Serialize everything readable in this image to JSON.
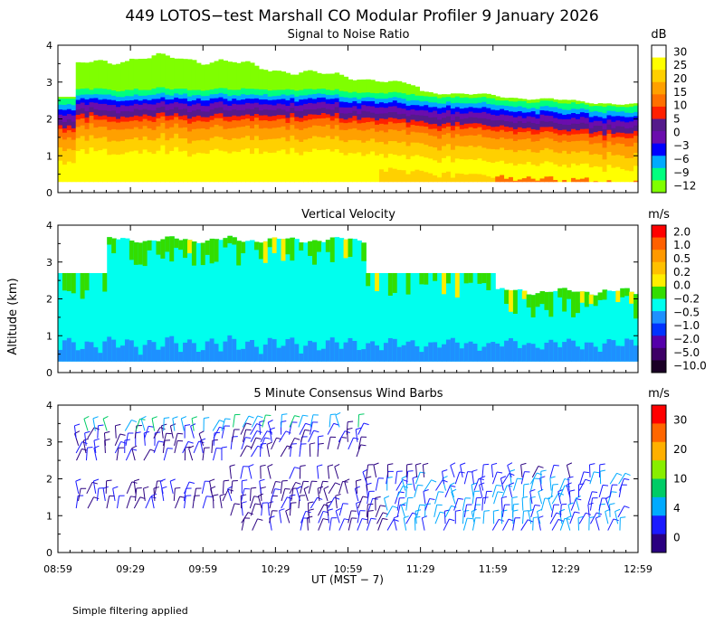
{
  "title": "449 LOTOS−test Marshall CO Modular Profiler  9 January 2026",
  "footnote": "Simple filtering applied",
  "ylabel": "Altitude (km)",
  "xlabel": "UT  (MST − 7)",
  "x_ticks": [
    "08:59",
    "09:29",
    "09:59",
    "10:29",
    "10:59",
    "11:29",
    "11:59",
    "12:29",
    "12:59"
  ],
  "chart_data": [
    {
      "type": "heatmap",
      "title": "Signal to Noise Ratio",
      "unit": "dB",
      "x_range": [
        "08:59",
        "12:59"
      ],
      "ylim": [
        0,
        4
      ],
      "y_ticks": [
        "0",
        "1",
        "2",
        "3",
        "4"
      ],
      "colorbar": {
        "labels": [
          "30",
          "25",
          "20",
          "15",
          "10",
          "5",
          "0",
          "−3",
          "−6",
          "−9",
          "−12"
        ],
        "colors": [
          "#ffffff",
          "#ffff00",
          "#ffd000",
          "#ffa000",
          "#ff7000",
          "#ff2000",
          "#551a8b",
          "#6a0dad",
          "#0000ff",
          "#00aaff",
          "#00ff7f",
          "#7fff00"
        ]
      }
    },
    {
      "type": "heatmap",
      "title": "Vertical Velocity",
      "unit": "m/s",
      "x_range": [
        "08:59",
        "12:59"
      ],
      "ylim": [
        0,
        4
      ],
      "y_ticks": [
        "0",
        "1",
        "2",
        "3",
        "4"
      ],
      "colorbar": {
        "labels": [
          "2.0",
          "1.0",
          "0.5",
          "0.2",
          "0.0",
          "−0.2",
          "−0.5",
          "−1.0",
          "−2.0",
          "−5.0",
          "−10.0"
        ],
        "colors": [
          "#ff0000",
          "#ff6000",
          "#ff9900",
          "#ffc000",
          "#ffee00",
          "#33dd00",
          "#00ffee",
          "#1e90ff",
          "#0033ff",
          "#5500aa",
          "#3d0066",
          "#1a0026"
        ]
      }
    },
    {
      "type": "wind-barbs",
      "title": "5 Minute Consensus Wind Barbs",
      "unit": "m/s",
      "x_range": [
        "08:59",
        "12:59"
      ],
      "ylim": [
        0,
        4
      ],
      "y_ticks": [
        "0",
        "1",
        "2",
        "3",
        "4"
      ],
      "colorbar": {
        "labels": [
          "30",
          "20",
          "10",
          "4",
          "0"
        ],
        "colors": [
          "#ff0000",
          "#ff6600",
          "#ffb000",
          "#88ee00",
          "#00cc66",
          "#00aaff",
          "#1a1aff",
          "#2a0080"
        ]
      }
    }
  ]
}
